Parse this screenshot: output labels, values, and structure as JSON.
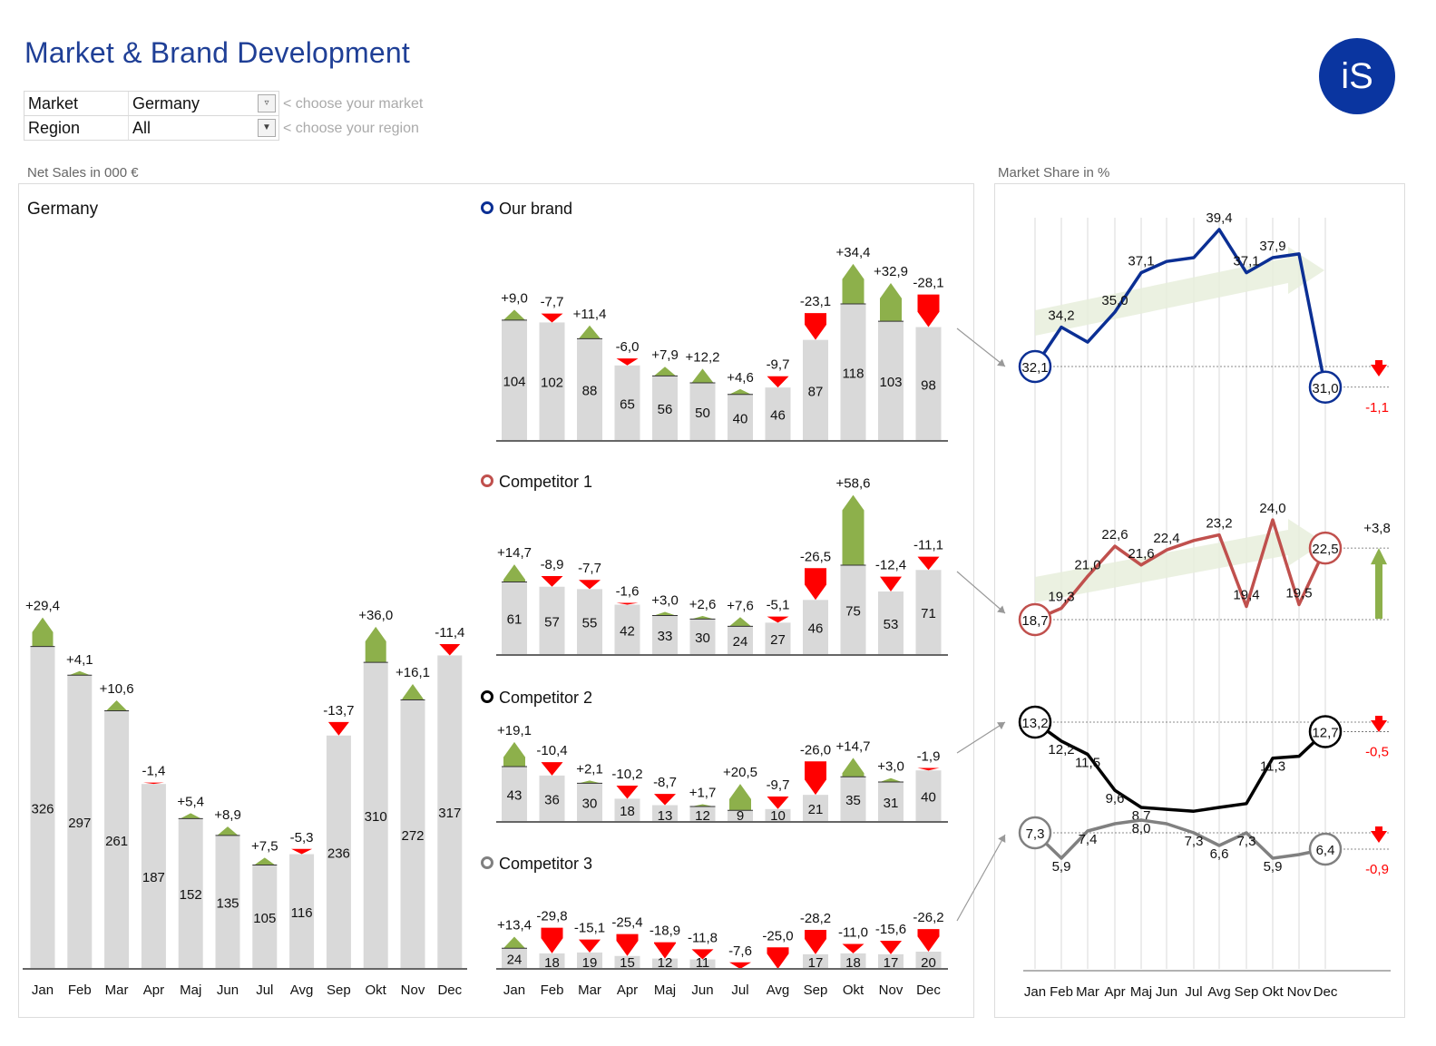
{
  "header": {
    "title": "Market & Brand Development",
    "logo_text": "iS"
  },
  "filters": [
    {
      "label": "Market",
      "value": "Germany",
      "hint": "< choose your market",
      "icon": "filter-dropdown-icon"
    },
    {
      "label": "Region",
      "value": "All",
      "hint": "< choose your region",
      "icon": "dropdown-arrow-icon"
    }
  ],
  "sections": {
    "net_sales_label": "Net Sales in 000 €",
    "market_share_label": "Market Share in %"
  },
  "colors": {
    "bar": "#d9d9d9",
    "positive": "#8db04b",
    "negative": "#ff0000",
    "our_brand": "#0b2f94",
    "competitor1": "#c0504d",
    "competitor2": "#000000",
    "competitor3": "#808080",
    "trend_arrow": "#e8eedc"
  },
  "chart_data": [
    {
      "type": "bar",
      "title": "Germany",
      "categories": [
        "Jan",
        "Feb",
        "Mar",
        "Apr",
        "Maj",
        "Jun",
        "Jul",
        "Avg",
        "Sep",
        "Okt",
        "Nov",
        "Dec"
      ],
      "values": [
        326,
        297,
        261,
        187,
        152,
        135,
        105,
        116,
        236,
        310,
        272,
        317
      ],
      "deltas": [
        "+29,4",
        "+4,1",
        "+10,6",
        "-1,4",
        "+5,4",
        "+8,9",
        "+7,5",
        "-5,3",
        "-13,7",
        "+36,0",
        "+16,1",
        "-11,4"
      ],
      "ylim": [
        0,
        500
      ]
    },
    {
      "type": "bar",
      "title": "Our brand",
      "legend_color": "#0b2f94",
      "categories": [
        "Jan",
        "Feb",
        "Mar",
        "Apr",
        "Maj",
        "Jun",
        "Jul",
        "Avg",
        "Sep",
        "Okt",
        "Nov",
        "Dec"
      ],
      "values": [
        104,
        102,
        88,
        65,
        56,
        50,
        40,
        46,
        87,
        118,
        103,
        98
      ],
      "deltas": [
        "+9,0",
        "-7,7",
        "+11,4",
        "-6,0",
        "+7,9",
        "+12,2",
        "+4,6",
        "-9,7",
        "-23,1",
        "+34,4",
        "+32,9",
        "-28,1"
      ]
    },
    {
      "type": "bar",
      "title": "Competitor 1",
      "legend_color": "#c0504d",
      "categories": [
        "Jan",
        "Feb",
        "Mar",
        "Apr",
        "Maj",
        "Jun",
        "Jul",
        "Avg",
        "Sep",
        "Okt",
        "Nov",
        "Dec"
      ],
      "values": [
        61,
        57,
        55,
        42,
        33,
        30,
        24,
        27,
        46,
        75,
        53,
        71
      ],
      "deltas": [
        "+14,7",
        "-8,9",
        "-7,7",
        "-1,6",
        "+3,0",
        "+2,6",
        "+7,6",
        "-5,1",
        "-26,5",
        "+58,6",
        "-12,4",
        "-11,1"
      ]
    },
    {
      "type": "bar",
      "title": "Competitor 2",
      "legend_color": "#000000",
      "categories": [
        "Jan",
        "Feb",
        "Mar",
        "Apr",
        "Maj",
        "Jun",
        "Jul",
        "Avg",
        "Sep",
        "Okt",
        "Nov",
        "Dec"
      ],
      "values": [
        43,
        36,
        30,
        18,
        13,
        12,
        9,
        10,
        21,
        35,
        31,
        40
      ],
      "deltas": [
        "+19,1",
        "-10,4",
        "+2,1",
        "-10,2",
        "-8,7",
        "+1,7",
        "+20,5",
        "-9,7",
        "-26,0",
        "+14,7",
        "+3,0",
        "-1,9"
      ]
    },
    {
      "type": "bar",
      "title": "Competitor 3",
      "legend_color": "#808080",
      "categories": [
        "Jan",
        "Feb",
        "Mar",
        "Apr",
        "Maj",
        "Jun",
        "Jul",
        "Avg",
        "Sep",
        "Okt",
        "Nov",
        "Dec"
      ],
      "values": [
        24,
        18,
        19,
        15,
        12,
        11,
        0,
        0,
        17,
        18,
        17,
        20
      ],
      "deltas": [
        "+13,4",
        "-29,8",
        "-15,1",
        "-25,4",
        "-18,9",
        "-11,8",
        "-7,6",
        "-25,0",
        "-28,2",
        "-11,0",
        "-15,6",
        "-26,2"
      ]
    },
    {
      "type": "line",
      "categories": [
        "Jan",
        "Feb",
        "Mar",
        "Apr",
        "Maj",
        "Jun",
        "Jul",
        "Avg",
        "Sep",
        "Okt",
        "Nov",
        "Dec"
      ],
      "series": [
        {
          "name": "Our brand",
          "values": [
            32.1,
            34.2,
            33.4,
            35.0,
            37.1,
            37.7,
            37.9,
            39.4,
            37.1,
            37.9,
            38.1,
            31.0
          ],
          "labels": [
            "32,1",
            "34,2",
            "",
            "35,0",
            "37,1",
            "",
            "",
            "39,4",
            "37,1",
            "37,9",
            "",
            "31,0"
          ],
          "change": "-1,1",
          "change_dir": "down"
        },
        {
          "name": "Competitor 1",
          "values": [
            18.7,
            19.3,
            21.0,
            22.6,
            21.6,
            22.4,
            22.9,
            23.2,
            19.4,
            24.0,
            19.5,
            22.5
          ],
          "labels": [
            "18,7",
            "19,3",
            "21,0",
            "22,6",
            "21,6",
            "22,4",
            "",
            "23,2",
            "19,4",
            "24,0",
            "19,5",
            "22,5"
          ],
          "change": "+3,8",
          "change_dir": "up"
        },
        {
          "name": "Competitor 2",
          "values": [
            13.2,
            12.2,
            11.5,
            9.6,
            8.7,
            8.6,
            8.5,
            8.7,
            8.9,
            11.3,
            11.4,
            12.7
          ],
          "labels": [
            "13,2",
            "12,2",
            "11,5",
            "9,6",
            "8,7",
            "",
            "",
            "",
            "",
            "11,3",
            "",
            "12,7"
          ],
          "change": "-0,5",
          "change_dir": "down"
        },
        {
          "name": "Competitor 3",
          "values": [
            7.3,
            5.9,
            7.4,
            7.8,
            8.0,
            7.8,
            7.3,
            6.6,
            7.3,
            5.9,
            6.1,
            6.4
          ],
          "labels": [
            "7,3",
            "5,9",
            "7,4",
            "",
            "8,0",
            "",
            "7,3",
            "6,6",
            "7,3",
            "5,9",
            "",
            "6,4"
          ],
          "change": "-0,9",
          "change_dir": "down"
        }
      ]
    }
  ]
}
